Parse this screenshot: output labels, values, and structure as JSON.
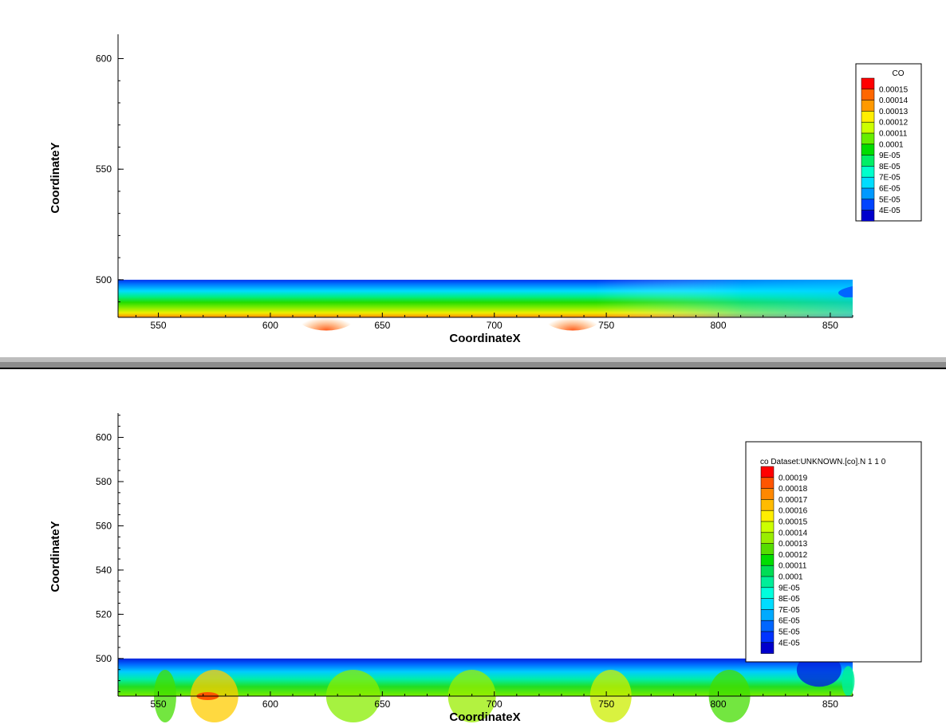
{
  "chart_data": [
    {
      "type": "heatmap",
      "xlabel": "CoordinateX",
      "ylabel": "CoordinateY",
      "xlim": [
        532,
        860
      ],
      "ylim": [
        483,
        611
      ],
      "x_ticks": [
        550,
        600,
        650,
        700,
        750,
        800,
        850
      ],
      "y_ticks": [
        500,
        550,
        600
      ],
      "field_region": {
        "x": [
          532,
          860
        ],
        "y": [
          483,
          500
        ]
      },
      "legend": {
        "title": "CO",
        "placement": "top-right",
        "levels": [
          "0.00015",
          "0.00014",
          "0.00013",
          "0.00012",
          "0.00011",
          "0.0001",
          "9E-05",
          "8E-05",
          "7E-05",
          "6E-05",
          "5E-05",
          "4E-05"
        ],
        "colors": [
          "#ff0000",
          "#ff6600",
          "#ff9900",
          "#ffee00",
          "#ccff00",
          "#66ee00",
          "#00dd00",
          "#00ee66",
          "#00ffcc",
          "#00ddff",
          "#0099ff",
          "#0044ff",
          "#0000cc"
        ]
      }
    },
    {
      "type": "heatmap",
      "xlabel": "CoordinateX",
      "ylabel": "CoordinateY",
      "xlim": [
        532,
        860
      ],
      "ylim": [
        483,
        611
      ],
      "x_ticks": [
        550,
        600,
        650,
        700,
        750,
        800,
        850
      ],
      "y_ticks": [
        500,
        520,
        540,
        560,
        580,
        600
      ],
      "field_region": {
        "x": [
          532,
          860
        ],
        "y": [
          483,
          500
        ]
      },
      "legend": {
        "title": "co Dataset:UNKNOWN.[co].N 1 1 0",
        "placement": "right",
        "levels": [
          "0.00019",
          "0.00018",
          "0.00017",
          "0.00016",
          "0.00015",
          "0.00014",
          "0.00013",
          "0.00012",
          "0.00011",
          "0.0001",
          "9E-05",
          "8E-05",
          "7E-05",
          "6E-05",
          "5E-05",
          "4E-05"
        ],
        "colors": [
          "#ff0000",
          "#ff5500",
          "#ff8800",
          "#ffbb00",
          "#ffee00",
          "#ccff00",
          "#99ee00",
          "#55dd00",
          "#00dd00",
          "#00dd55",
          "#00ee99",
          "#00ffdd",
          "#00ddff",
          "#00aaff",
          "#0066ff",
          "#0033ff",
          "#0000cc"
        ]
      }
    }
  ]
}
